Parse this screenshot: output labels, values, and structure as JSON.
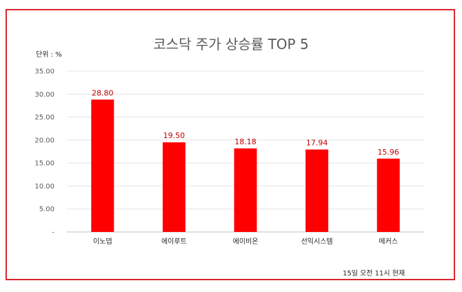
{
  "chart_data": {
    "type": "bar",
    "title": "코스닥 주가 상승률 TOP 5",
    "unit_label": "단위 : %",
    "categories": [
      "이노뎁",
      "에이루트",
      "에이비온",
      "선익시스템",
      "메커스"
    ],
    "values": [
      28.8,
      19.5,
      18.18,
      17.94,
      15.96
    ],
    "data_labels": [
      "28.80",
      "19.50",
      "18.18",
      "17.94",
      "15.96"
    ],
    "y_ticks": [
      "-",
      "5.00",
      "10.00",
      "15.00",
      "20.00",
      "25.00",
      "30.00",
      "35.00"
    ],
    "ylim": [
      0,
      35
    ],
    "grid": true,
    "bar_color": "#ff0000",
    "label_color": "#c00000",
    "note": "15일 오전 11시 현재"
  },
  "frame_color": "#d9262b"
}
